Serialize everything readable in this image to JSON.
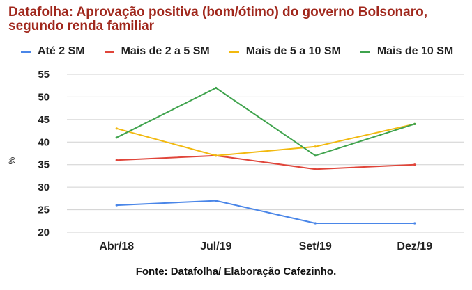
{
  "title_line1": "Datafolha: Aprovação positiva (bom/ótimo) do governo Bolsonaro,",
  "title_line2": "segundo renda familiar",
  "source": "Fonte: Datafolha/ Elaboração Cafezinho.",
  "chart_data": {
    "type": "line",
    "title": "Datafolha: Aprovação positiva (bom/ótimo) do governo Bolsonaro, segundo renda familiar",
    "xlabel": "",
    "ylabel": "%",
    "categories": [
      "Abr/18",
      "Jul/19",
      "Set/19",
      "Dez/19"
    ],
    "ylim": [
      20,
      55
    ],
    "yticks": [
      "20",
      "25",
      "30",
      "35",
      "40",
      "45",
      "50",
      "55"
    ],
    "grid": true,
    "legend_position": "top",
    "series": [
      {
        "name": "Até 2 SM",
        "color": "#4a86e8",
        "values": [
          26,
          27,
          22,
          22
        ]
      },
      {
        "name": "Mais de 2 a 5 SM",
        "color": "#e0453a",
        "values": [
          36,
          37,
          34,
          35
        ]
      },
      {
        "name": "Mais de 5 a 10 SM",
        "color": "#f2b90f",
        "values": [
          43,
          37,
          39,
          44
        ]
      },
      {
        "name": "Mais de 10 SM",
        "color": "#3fa34d",
        "values": [
          41,
          52,
          37,
          44
        ]
      }
    ]
  }
}
